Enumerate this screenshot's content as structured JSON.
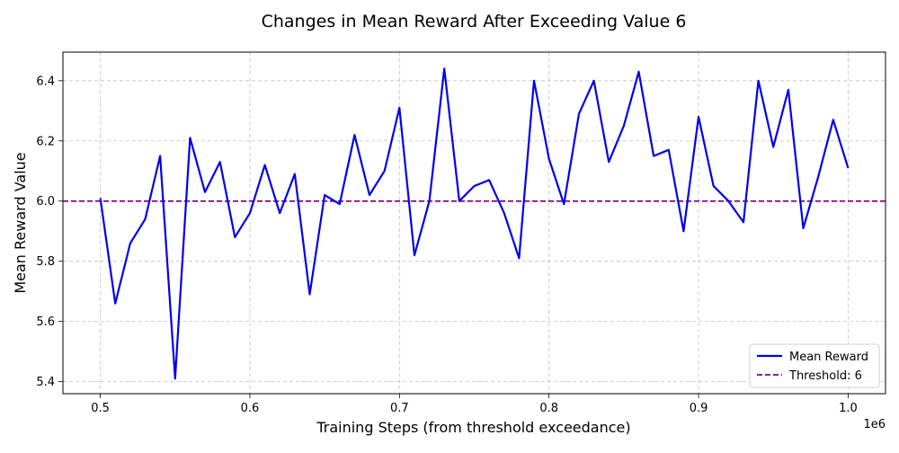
{
  "chart_data": {
    "type": "line",
    "title": "Changes in Mean Reward After Exceeding Value 6",
    "xlabel": "Training Steps (from threshold exceedance)",
    "ylabel": "Mean Reward Value",
    "x_offset_text": "1e6",
    "xlim": [
      475000,
      1025000
    ],
    "ylim": [
      5.36,
      6.495
    ],
    "x_ticks": [
      500000,
      600000,
      700000,
      800000,
      900000,
      1000000
    ],
    "x_tick_labels": [
      "0.5",
      "0.6",
      "0.7",
      "0.8",
      "0.9",
      "1.0"
    ],
    "y_ticks": [
      5.4,
      5.6,
      5.8,
      6.0,
      6.2,
      6.4
    ],
    "y_tick_labels": [
      "5.4",
      "5.6",
      "5.8",
      "6.0",
      "6.2",
      "6.4"
    ],
    "grid": true,
    "legend_position": "lower-right",
    "series": [
      {
        "name": "Mean Reward",
        "color": "#0000ee",
        "style": "solid",
        "x": [
          500000,
          510000,
          520000,
          530000,
          540000,
          550000,
          560000,
          570000,
          580000,
          590000,
          600000,
          610000,
          620000,
          630000,
          640000,
          650000,
          660000,
          670000,
          680000,
          690000,
          700000,
          710000,
          720000,
          730000,
          740000,
          750000,
          760000,
          770000,
          780000,
          790000,
          800000,
          810000,
          820000,
          830000,
          840000,
          850000,
          860000,
          870000,
          880000,
          890000,
          900000,
          910000,
          920000,
          930000,
          940000,
          950000,
          960000,
          970000,
          980000,
          990000,
          1000000
        ],
        "y": [
          6.01,
          5.66,
          5.86,
          5.94,
          6.15,
          5.41,
          6.21,
          6.03,
          6.13,
          5.88,
          5.96,
          6.12,
          5.96,
          6.09,
          5.69,
          6.02,
          5.99,
          6.22,
          6.02,
          6.1,
          6.31,
          5.82,
          6.0,
          6.44,
          6.0,
          6.05,
          6.07,
          5.96,
          5.81,
          6.4,
          6.14,
          5.99,
          6.29,
          6.4,
          6.13,
          6.25,
          6.43,
          6.15,
          6.17,
          5.9,
          6.28,
          6.05,
          6.0,
          5.93,
          6.4,
          6.18,
          6.37,
          5.91,
          6.08,
          6.27,
          6.11
        ]
      },
      {
        "name": "Threshold: 6",
        "color": "#800080",
        "style": "dashed",
        "hline": 6.0
      }
    ]
  }
}
